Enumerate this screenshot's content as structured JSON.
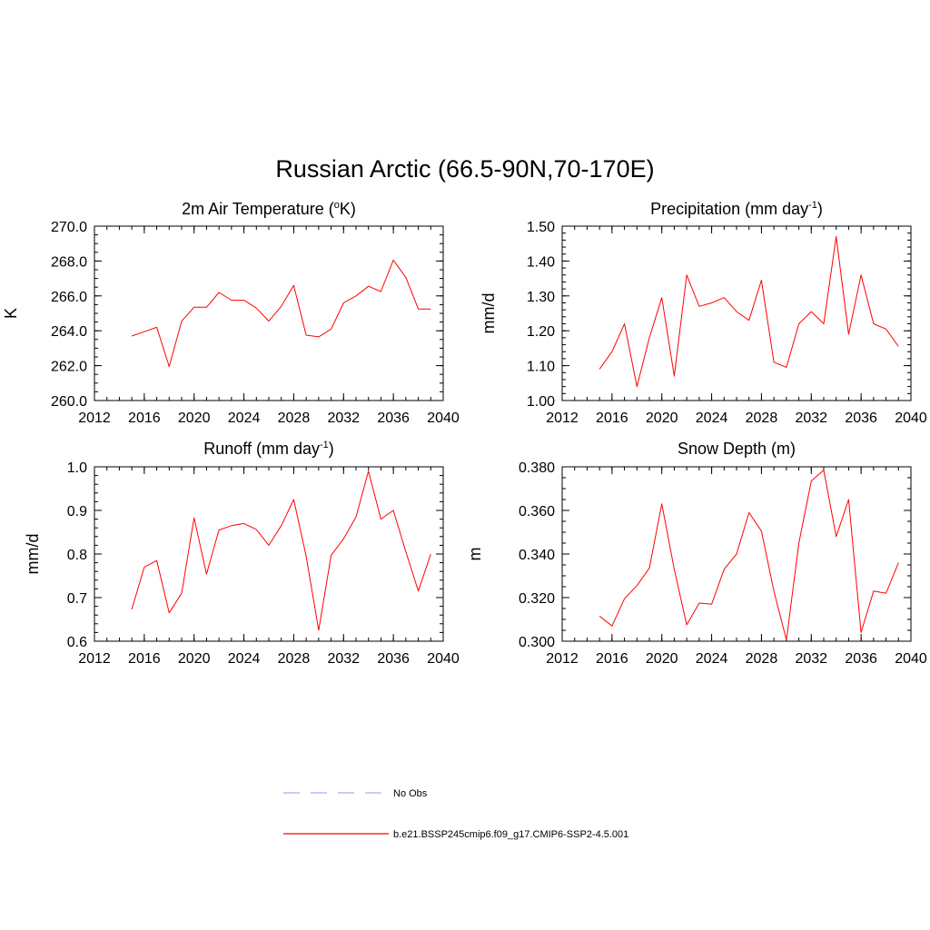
{
  "figure": {
    "title": "Russian Arctic (66.5-90N,70-170E)",
    "line_color": "#ff0000",
    "legend": [
      {
        "label": "No Obs",
        "color": "#aaaaff",
        "dash": true
      },
      {
        "label": "b.e21.BSSP245cmip6.f09_g17.CMIP6-SSP2-4.5.001",
        "color": "#ff0000",
        "dash": false
      }
    ]
  },
  "chart_data": [
    {
      "type": "line",
      "title": "2m Air Temperature (",
      "title_sup": "o",
      "title_tail": "K)",
      "ylabel": "K",
      "xlim": [
        2012,
        2040
      ],
      "ylim": [
        260,
        270
      ],
      "xticks": [
        2012,
        2016,
        2020,
        2024,
        2028,
        2032,
        2036,
        2040
      ],
      "xtick_labels": [
        "2012",
        "2016",
        "2020",
        "2024",
        "2028",
        "2032",
        "2036",
        "2040"
      ],
      "yticks": [
        260,
        262,
        264,
        266,
        268,
        270
      ],
      "ytick_labels": [
        "260.0",
        "262.0",
        "264.0",
        "266.0",
        "268.0",
        "270.0"
      ],
      "yminor": 0.5,
      "x": [
        2015,
        2016,
        2017,
        2018,
        2019,
        2020,
        2021,
        2022,
        2023,
        2024,
        2025,
        2026,
        2027,
        2028,
        2029,
        2030,
        2031,
        2032,
        2033,
        2034,
        2035,
        2036,
        2037,
        2038,
        2039
      ],
      "values": [
        263.7,
        263.95,
        264.2,
        261.95,
        264.55,
        265.35,
        265.35,
        266.2,
        265.75,
        265.75,
        265.3,
        264.55,
        265.4,
        266.6,
        263.75,
        263.65,
        264.1,
        265.6,
        266.0,
        266.55,
        266.25,
        268.05,
        267.05,
        265.25,
        265.25
      ]
    },
    {
      "type": "line",
      "title": "Precipitation (mm day",
      "title_sup": "-1",
      "title_tail": ")",
      "ylabel": "mm/d",
      "xlim": [
        2012,
        2040
      ],
      "ylim": [
        1.0,
        1.5
      ],
      "xticks": [
        2012,
        2016,
        2020,
        2024,
        2028,
        2032,
        2036,
        2040
      ],
      "xtick_labels": [
        "2012",
        "2016",
        "2020",
        "2024",
        "2028",
        "2032",
        "2036",
        "2040"
      ],
      "yticks": [
        1.0,
        1.1,
        1.2,
        1.3,
        1.4,
        1.5
      ],
      "ytick_labels": [
        "1.00",
        "1.10",
        "1.20",
        "1.30",
        "1.40",
        "1.50"
      ],
      "yminor": 0.02,
      "x": [
        2015,
        2016,
        2017,
        2018,
        2019,
        2020,
        2021,
        2022,
        2023,
        2024,
        2025,
        2026,
        2027,
        2028,
        2029,
        2030,
        2031,
        2032,
        2033,
        2034,
        2035,
        2036,
        2037,
        2038,
        2039
      ],
      "values": [
        1.09,
        1.14,
        1.22,
        1.04,
        1.18,
        1.295,
        1.07,
        1.36,
        1.27,
        1.28,
        1.295,
        1.255,
        1.23,
        1.345,
        1.11,
        1.095,
        1.22,
        1.255,
        1.22,
        1.47,
        1.19,
        1.36,
        1.22,
        1.205,
        1.155
      ]
    },
    {
      "type": "line",
      "title": "Runoff (mm day",
      "title_sup": "-1",
      "title_tail": ")",
      "ylabel": "mm/d",
      "xlim": [
        2012,
        2040
      ],
      "ylim": [
        0.6,
        1.0
      ],
      "xticks": [
        2012,
        2016,
        2020,
        2024,
        2028,
        2032,
        2036,
        2040
      ],
      "xtick_labels": [
        "2012",
        "2016",
        "2020",
        "2024",
        "2028",
        "2032",
        "2036",
        "2040"
      ],
      "yticks": [
        0.6,
        0.7,
        0.8,
        0.9,
        1.0
      ],
      "ytick_labels": [
        "0.6",
        "0.7",
        "0.8",
        "0.9",
        "1.0"
      ],
      "yminor": 0.02,
      "x": [
        2015,
        2016,
        2017,
        2018,
        2019,
        2020,
        2021,
        2022,
        2023,
        2024,
        2025,
        2026,
        2027,
        2028,
        2029,
        2030,
        2031,
        2032,
        2033,
        2034,
        2035,
        2036,
        2037,
        2038,
        2039
      ],
      "values": [
        0.673,
        0.77,
        0.785,
        0.665,
        0.71,
        0.883,
        0.754,
        0.855,
        0.865,
        0.87,
        0.856,
        0.82,
        0.865,
        0.925,
        0.795,
        0.625,
        0.797,
        0.835,
        0.885,
        0.99,
        0.88,
        0.9,
        0.805,
        0.715,
        0.8
      ]
    },
    {
      "type": "line",
      "title": "Snow Depth (m)",
      "title_sup": "",
      "title_tail": "",
      "ylabel": "m",
      "xlim": [
        2012,
        2040
      ],
      "ylim": [
        0.3,
        0.38
      ],
      "xticks": [
        2012,
        2016,
        2020,
        2024,
        2028,
        2032,
        2036,
        2040
      ],
      "xtick_labels": [
        "2012",
        "2016",
        "2020",
        "2024",
        "2028",
        "2032",
        "2036",
        "2040"
      ],
      "yticks": [
        0.3,
        0.32,
        0.34,
        0.36,
        0.38
      ],
      "ytick_labels": [
        "0.300",
        "0.320",
        "0.340",
        "0.360",
        "0.380"
      ],
      "yminor": 0.005,
      "x": [
        2015,
        2016,
        2017,
        2018,
        2019,
        2020,
        2021,
        2022,
        2023,
        2024,
        2025,
        2026,
        2027,
        2028,
        2029,
        2030,
        2031,
        2032,
        2033,
        2034,
        2035,
        2036,
        2037,
        2038,
        2039
      ],
      "values": [
        0.3115,
        0.307,
        0.3195,
        0.3255,
        0.3335,
        0.363,
        0.333,
        0.3075,
        0.3175,
        0.317,
        0.333,
        0.34,
        0.359,
        0.3505,
        0.323,
        0.3005,
        0.345,
        0.3735,
        0.3785,
        0.348,
        0.365,
        0.304,
        0.323,
        0.322,
        0.336
      ]
    }
  ]
}
